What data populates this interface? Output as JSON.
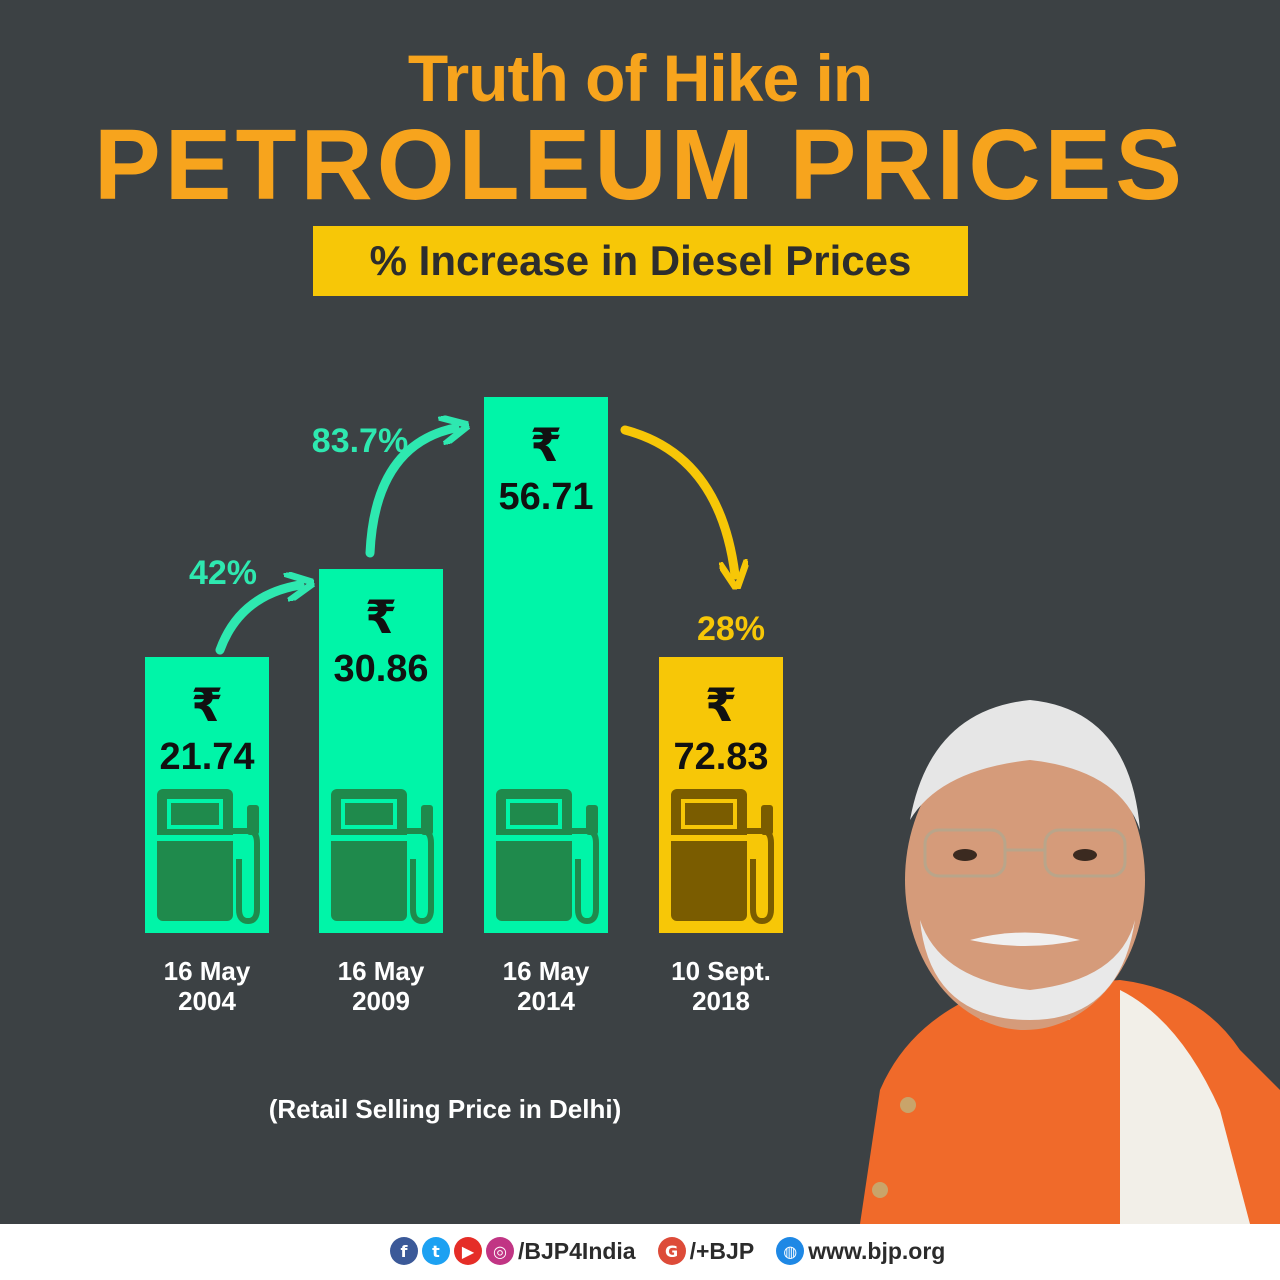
{
  "header": {
    "title_line1": "Truth of Hike in",
    "title_line2": "PETROLEUM PRICES",
    "subtitle": "% Increase in Diesel Prices"
  },
  "chart_data": {
    "type": "bar",
    "title": "% Increase in Diesel Prices",
    "categories": [
      "16 May 2004",
      "16 May 2009",
      "16 May 2014",
      "10 Sept. 2018"
    ],
    "category_lines": [
      [
        "16 May",
        "2004"
      ],
      [
        "16 May",
        "2009"
      ],
      [
        "16 May",
        "2014"
      ],
      [
        "10 Sept.",
        "2018"
      ]
    ],
    "values": [
      21.74,
      30.86,
      56.71,
      72.83
    ],
    "value_labels": [
      "21.74",
      "30.86",
      "56.71",
      "72.83"
    ],
    "currency_symbol": "₹",
    "bar_colors": [
      "#00f5a8",
      "#00f5a8",
      "#00f5a8",
      "#f7c707"
    ],
    "increase_labels": [
      {
        "from": 0,
        "to": 1,
        "text": "42%",
        "color": "#2ee8b0"
      },
      {
        "from": 1,
        "to": 2,
        "text": "83.7%",
        "color": "#2ee8b0"
      },
      {
        "from": 2,
        "to": 3,
        "text": "28%",
        "color": "#f7c707"
      }
    ],
    "note": "(Retail Selling Price in Delhi)"
  },
  "colors": {
    "background": "#3c4144",
    "title": "#f7a41d",
    "subtitle_bg": "#f7c707",
    "green_bar": "#00f5a8",
    "yellow_bar": "#f7c707",
    "pump_green": "#1f8a4c",
    "pump_yellow": "#7a5c00"
  },
  "footer": {
    "handle": "/BJP4India",
    "gplus": "/+BJP",
    "website": "www.bjp.org",
    "icons": [
      "facebook-icon",
      "twitter-icon",
      "youtube-icon",
      "instagram-icon",
      "google-plus-icon",
      "globe-icon"
    ]
  }
}
